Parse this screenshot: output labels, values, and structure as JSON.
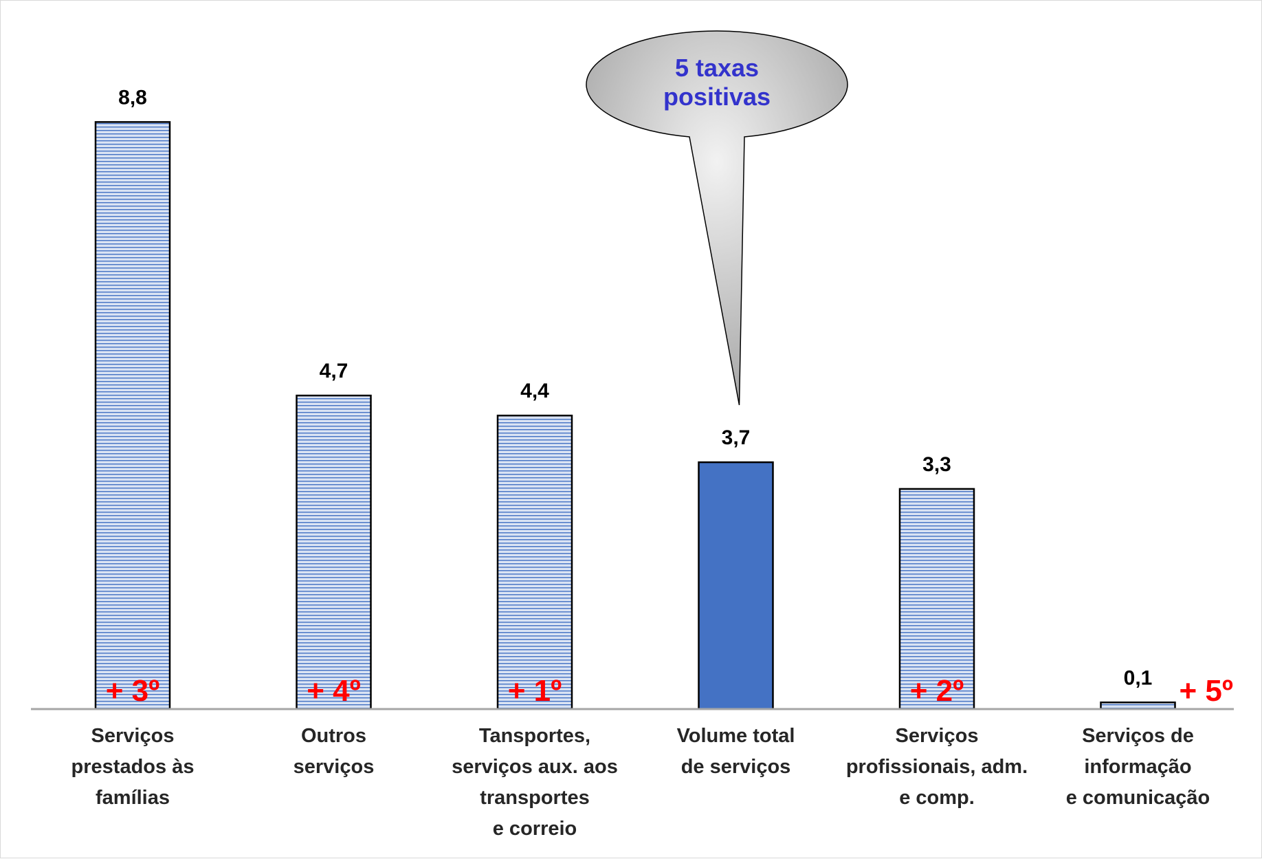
{
  "chart_data": {
    "type": "bar",
    "categories": [
      [
        "Serviços",
        "prestados às",
        "famílias"
      ],
      [
        "Outros",
        "serviços"
      ],
      [
        "Tansportes,",
        "serviços aux. aos",
        "transportes",
        "e correio"
      ],
      [
        "Volume total",
        "de serviços"
      ],
      [
        "Serviços",
        "profissionais, adm.",
        "e comp."
      ],
      [
        "Serviços de",
        "informação",
        "e comunicação"
      ]
    ],
    "values": [
      8.8,
      4.7,
      4.4,
      3.7,
      3.3,
      0.1
    ],
    "value_labels": [
      "8,8",
      "4,7",
      "4,4",
      "3,7",
      "3,3",
      "0,1"
    ],
    "rank_labels": [
      "+ 3º",
      "+ 4º",
      "+ 1º",
      "",
      "+ 2º",
      "+ 5º"
    ],
    "highlight_index": 3,
    "ylim": [
      0,
      10
    ],
    "grid": false,
    "legend": "none",
    "title": "",
    "xlabel": "",
    "ylabel": "",
    "annotation": {
      "lines": [
        "5 taxas",
        "positivas"
      ],
      "points_to_category": 3
    }
  },
  "colors": {
    "bar_pattern_fill": "#dae3f3",
    "bar_pattern_stripe": "#4472c4",
    "highlight_bar": "#4472c4",
    "bar_border": "#000000",
    "axis_line": "#a6a6a6",
    "rank_text": "#ff0000",
    "callout_text": "#3333cc",
    "callout_fill_light": "#f2f2f2",
    "callout_fill_dark": "#a6a6a6"
  }
}
